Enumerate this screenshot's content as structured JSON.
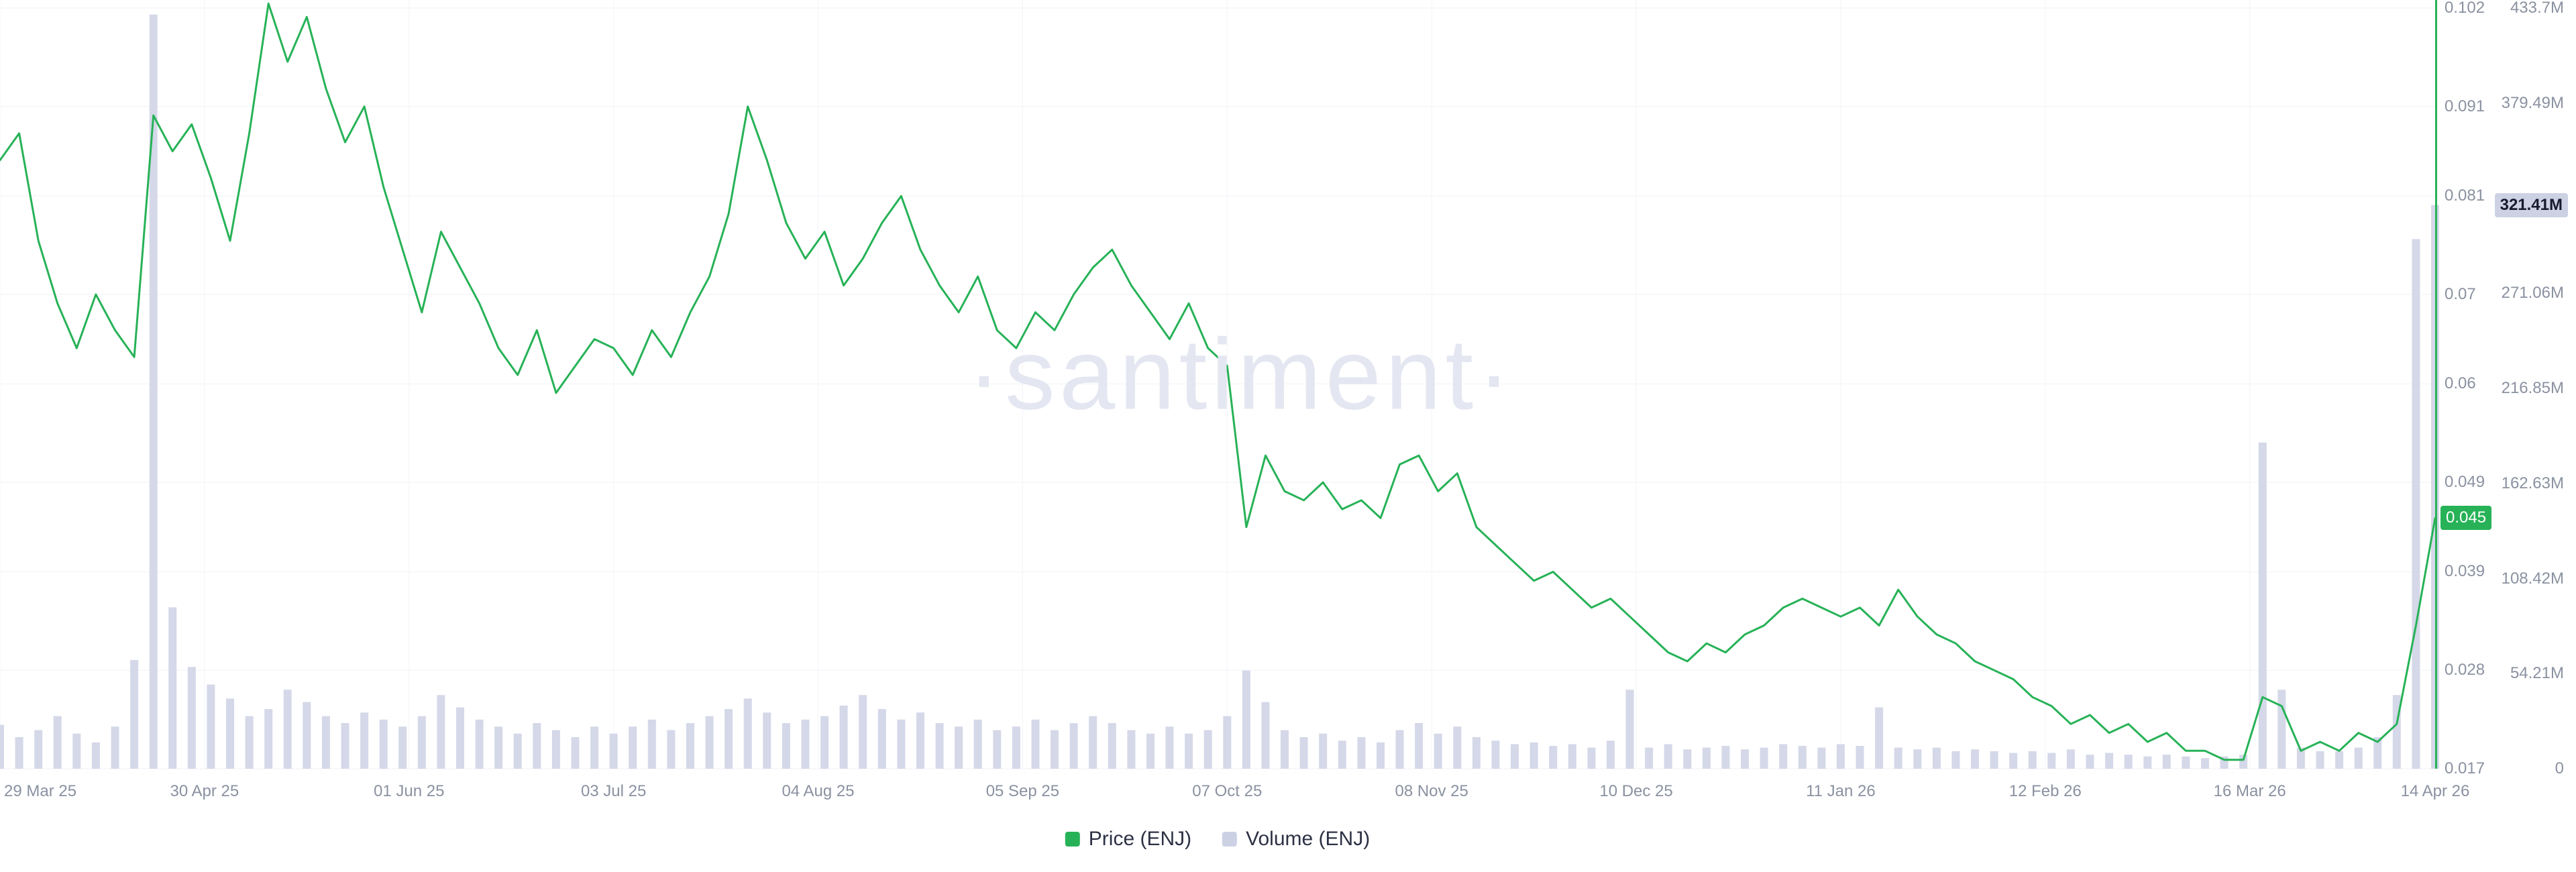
{
  "watermark": "·santiment·",
  "colors": {
    "price_green": "#27b257",
    "volume_bar": "#d4d8e8",
    "volume_swatch": "#ccd2e4",
    "volume_badge_bg": "#ccd1e3",
    "grid_h": "#f1f2f7",
    "grid_v": "#f3f4f8",
    "axis_text": "#8a91a0"
  },
  "legend": [
    {
      "label": "Price (ENJ)",
      "color": "#27b257"
    },
    {
      "label": "Volume (ENJ)",
      "color": "#ccd2e4"
    }
  ],
  "chart_data": {
    "type": "line+bar",
    "title": "ENJ price and volume",
    "x": {
      "start": "29 Mar 25",
      "end": "14 Apr 26",
      "interval_days": 3,
      "total_days": 381,
      "ticks": [
        {
          "label": "29 Mar 25",
          "day": 0
        },
        {
          "label": "30 Apr 25",
          "day": 32
        },
        {
          "label": "01 Jun 25",
          "day": 64
        },
        {
          "label": "03 Jul 25",
          "day": 96
        },
        {
          "label": "04 Aug 25",
          "day": 128
        },
        {
          "label": "05 Sep 25",
          "day": 160
        },
        {
          "label": "07 Oct 25",
          "day": 192
        },
        {
          "label": "08 Nov 25",
          "day": 224
        },
        {
          "label": "10 Dec 25",
          "day": 256
        },
        {
          "label": "11 Jan 26",
          "day": 288
        },
        {
          "label": "12 Feb 26",
          "day": 320
        },
        {
          "label": "16 Mar 26",
          "day": 352
        },
        {
          "label": "14 Apr 26",
          "day": 381
        }
      ]
    },
    "price_axis": {
      "range": [
        0.017,
        0.102
      ],
      "ticks": [
        {
          "label": "0.102",
          "value": 0.102
        },
        {
          "label": "0.091",
          "value": 0.091
        },
        {
          "label": "0.081",
          "value": 0.081
        },
        {
          "label": "0.07",
          "value": 0.07
        },
        {
          "label": "0.06",
          "value": 0.06
        },
        {
          "label": "0.049",
          "value": 0.049
        },
        {
          "label": "0.039",
          "value": 0.039
        },
        {
          "label": "0.028",
          "value": 0.028
        },
        {
          "label": "0.017",
          "value": 0.017
        }
      ],
      "current": "0.045",
      "current_value": 0.045
    },
    "volume_axis": {
      "range_millions": [
        0,
        433.7
      ],
      "ticks": [
        {
          "label": "433.7M",
          "value": 433.7
        },
        {
          "label": "379.49M",
          "value": 379.49
        },
        {
          "label": "271.06M",
          "value": 271.06
        },
        {
          "label": "216.85M",
          "value": 216.85
        },
        {
          "label": "162.63M",
          "value": 162.63
        },
        {
          "label": "108.42M",
          "value": 108.42
        },
        {
          "label": "54.21M",
          "value": 54.21
        },
        {
          "label": "0",
          "value": 0
        }
      ],
      "current": "321.41M",
      "current_value_millions": 321.41
    },
    "series": [
      {
        "name": "Price (ENJ)",
        "type": "line",
        "axis": "price",
        "color": "#27b257",
        "values": [
          0.085,
          0.088,
          0.076,
          0.069,
          0.064,
          0.07,
          0.066,
          0.063,
          0.09,
          0.086,
          0.089,
          0.083,
          0.076,
          0.088,
          0.1025,
          0.096,
          0.101,
          0.093,
          0.087,
          0.091,
          0.082,
          0.075,
          0.068,
          0.077,
          0.073,
          0.069,
          0.064,
          0.061,
          0.066,
          0.059,
          0.062,
          0.065,
          0.064,
          0.061,
          0.066,
          0.063,
          0.068,
          0.072,
          0.079,
          0.091,
          0.085,
          0.078,
          0.074,
          0.077,
          0.071,
          0.074,
          0.078,
          0.081,
          0.075,
          0.071,
          0.068,
          0.072,
          0.066,
          0.064,
          0.068,
          0.066,
          0.07,
          0.073,
          0.075,
          0.071,
          0.068,
          0.065,
          0.069,
          0.064,
          0.062,
          0.044,
          0.052,
          0.048,
          0.047,
          0.049,
          0.046,
          0.047,
          0.045,
          0.051,
          0.052,
          0.048,
          0.05,
          0.044,
          0.042,
          0.04,
          0.038,
          0.039,
          0.037,
          0.035,
          0.036,
          0.034,
          0.032,
          0.03,
          0.029,
          0.031,
          0.03,
          0.032,
          0.033,
          0.035,
          0.036,
          0.035,
          0.034,
          0.035,
          0.033,
          0.037,
          0.034,
          0.032,
          0.031,
          0.029,
          0.028,
          0.027,
          0.025,
          0.024,
          0.022,
          0.023,
          0.021,
          0.022,
          0.02,
          0.021,
          0.019,
          0.019,
          0.018,
          0.018,
          0.025,
          0.024,
          0.019,
          0.02,
          0.019,
          0.021,
          0.02,
          0.022,
          0.033,
          0.045
        ]
      },
      {
        "name": "Volume (ENJ)",
        "type": "bar",
        "axis": "volume",
        "color": "#d4d8e8",
        "values_millions": [
          25,
          18,
          22,
          30,
          20,
          15,
          24,
          62,
          430,
          92,
          58,
          48,
          40,
          30,
          34,
          45,
          38,
          30,
          26,
          32,
          28,
          24,
          30,
          42,
          35,
          28,
          24,
          20,
          26,
          22,
          18,
          24,
          20,
          24,
          28,
          22,
          26,
          30,
          34,
          40,
          32,
          26,
          28,
          30,
          36,
          42,
          34,
          28,
          32,
          26,
          24,
          28,
          22,
          24,
          28,
          22,
          26,
          30,
          26,
          22,
          20,
          24,
          20,
          22,
          30,
          56,
          38,
          22,
          18,
          20,
          16,
          18,
          15,
          22,
          26,
          20,
          24,
          18,
          16,
          14,
          15,
          13,
          14,
          12,
          16,
          45,
          12,
          14,
          11,
          12,
          13,
          11,
          12,
          14,
          13,
          12,
          14,
          13,
          35,
          12,
          11,
          12,
          10,
          11,
          10,
          9,
          10,
          9,
          11,
          8,
          9,
          8,
          7,
          8,
          7,
          6,
          7,
          8,
          186,
          45,
          12,
          10,
          10,
          12,
          18,
          42,
          302,
          321.41
        ]
      }
    ]
  }
}
